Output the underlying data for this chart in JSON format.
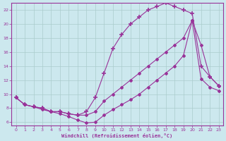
{
  "xlabel": "Windchill (Refroidissement éolien,°C)",
  "bg_color": "#cce8ee",
  "grid_color": "#aacccc",
  "line_color": "#993399",
  "xlim": [
    -0.5,
    23.5
  ],
  "ylim": [
    5.5,
    23.0
  ],
  "xticks": [
    0,
    1,
    2,
    3,
    4,
    5,
    6,
    7,
    8,
    9,
    10,
    11,
    12,
    13,
    14,
    15,
    16,
    17,
    18,
    19,
    20,
    21,
    22,
    23
  ],
  "yticks": [
    6,
    8,
    10,
    12,
    14,
    16,
    18,
    20,
    22
  ],
  "line1_x": [
    0,
    1,
    2,
    3,
    4,
    5,
    6,
    7,
    8,
    9,
    10,
    11,
    12,
    13,
    14,
    15,
    16,
    17,
    18,
    19,
    20,
    21,
    22,
    23
  ],
  "line1_y": [
    9.5,
    8.5,
    8.2,
    7.8,
    7.5,
    7.2,
    6.8,
    6.3,
    5.9,
    6.0,
    7.0,
    7.8,
    8.5,
    9.2,
    10.0,
    11.0,
    12.0,
    13.0,
    14.0,
    15.5,
    20.5,
    12.2,
    11.0,
    10.5
  ],
  "line2_x": [
    0,
    1,
    2,
    3,
    4,
    5,
    6,
    7,
    8,
    9,
    10,
    11,
    12,
    13,
    14,
    15,
    16,
    17,
    18,
    19,
    20,
    21,
    22,
    23
  ],
  "line2_y": [
    9.5,
    8.5,
    8.2,
    8.0,
    7.5,
    7.5,
    7.2,
    7.0,
    7.0,
    7.5,
    9.0,
    10.0,
    11.0,
    12.0,
    13.0,
    14.0,
    15.0,
    16.0,
    17.0,
    18.0,
    20.5,
    17.0,
    12.5,
    11.2
  ],
  "line3_x": [
    0,
    1,
    2,
    3,
    4,
    5,
    6,
    7,
    8,
    9,
    10,
    11,
    12,
    13,
    14,
    15,
    16,
    17,
    18,
    19,
    20,
    21,
    22,
    23
  ],
  "line3_y": [
    9.5,
    8.5,
    8.2,
    8.0,
    7.5,
    7.5,
    7.2,
    7.0,
    7.5,
    9.5,
    13.0,
    16.5,
    18.5,
    20.0,
    21.0,
    22.0,
    22.5,
    23.0,
    22.5,
    22.0,
    21.5,
    14.0,
    12.5,
    11.2
  ]
}
